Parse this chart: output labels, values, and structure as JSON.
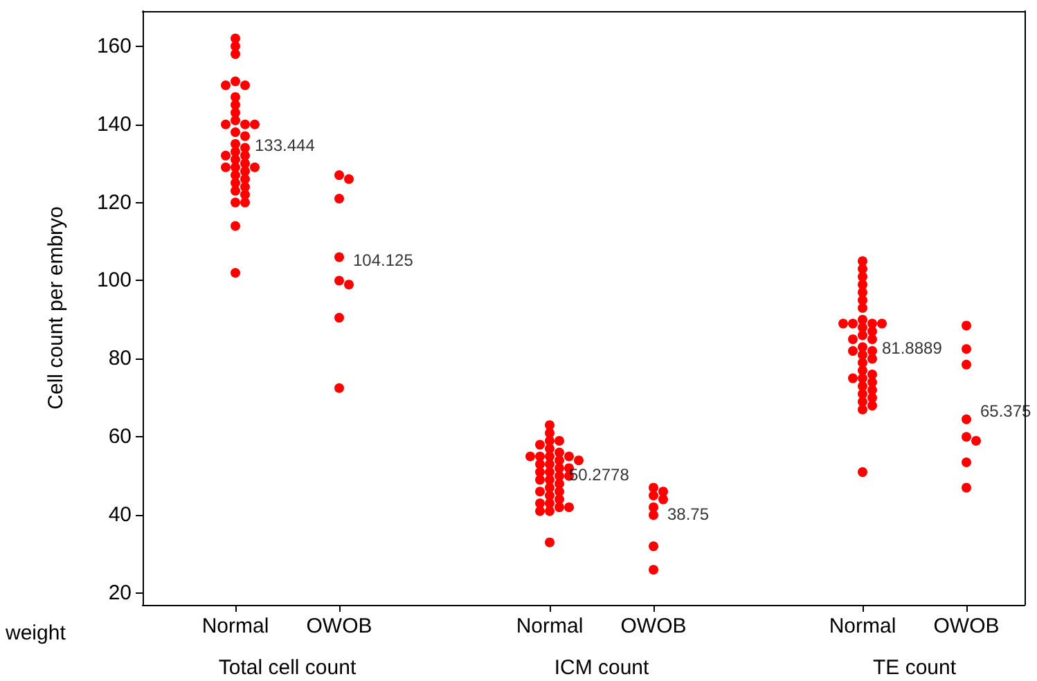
{
  "chart_data": [
    {
      "type": "scatter",
      "ylabel": "Cell count per embryo",
      "xlabel": "Total cell count",
      "categories": [
        "Normal",
        "OWOB"
      ],
      "ylim": [
        17,
        169
      ],
      "yticks": [
        20,
        40,
        60,
        80,
        100,
        120,
        140,
        160
      ],
      "marker": "circle",
      "annotations": [
        "133.444",
        "104.125",
        "weight"
      ],
      "series": [
        {
          "color": "#ff0000",
          "x": [
            "Normal",
            "Normal",
            "Normal",
            "Normal",
            "Normal",
            "Normal",
            "Normal",
            "Normal",
            "Normal",
            "Normal",
            "Normal",
            "Normal",
            "Normal",
            "Normal",
            "Normal",
            "Normal",
            "Normal",
            "Normal",
            "Normal",
            "Normal",
            "Normal",
            "Normal",
            "Normal",
            "Normal",
            "Normal",
            "Normal",
            "Normal",
            "Normal",
            "Normal",
            "Normal",
            "Normal",
            "Normal",
            "Normal",
            "Normal",
            "Normal",
            "Normal"
          ],
          "values": [
            162,
            160,
            158,
            151,
            150,
            150,
            147,
            145,
            143,
            141,
            140,
            140,
            140,
            138,
            137,
            135,
            134,
            133,
            132,
            132,
            131,
            130,
            129,
            129,
            129,
            128,
            127,
            126,
            125,
            124,
            123,
            122,
            120,
            120,
            114,
            102
          ]
        },
        {
          "color": "#ff0000",
          "x": [
            "OWOB",
            "OWOB",
            "OWOB",
            "OWOB",
            "OWOB",
            "OWOB",
            "OWOB",
            "OWOB"
          ],
          "values": [
            127,
            126,
            121,
            106,
            100,
            99,
            90.5,
            72.5
          ]
        }
      ]
    },
    {
      "type": "scatter",
      "xlabel": "ICM count",
      "categories": [
        "Normal",
        "OWOB"
      ],
      "ylim": [
        17,
        169
      ],
      "yticks": [
        20,
        40,
        60,
        80,
        100,
        120,
        140,
        160
      ],
      "tick_labels": "x",
      "marker": "circle",
      "annotations": [
        "50.2778",
        "38.75"
      ],
      "series": [
        {
          "color": "#ff0000",
          "x": [
            "Normal",
            "Normal",
            "Normal",
            "Normal",
            "Normal",
            "Normal",
            "Normal",
            "Normal",
            "Normal",
            "Normal",
            "Normal",
            "Normal",
            "Normal",
            "Normal",
            "Normal",
            "Normal",
            "Normal",
            "Normal",
            "Normal",
            "Normal",
            "Normal",
            "Normal",
            "Normal",
            "Normal",
            "Normal",
            "Normal",
            "Normal",
            "Normal",
            "Normal",
            "Normal",
            "Normal",
            "Normal",
            "Normal",
            "Normal",
            "Normal",
            "Normal"
          ],
          "values": [
            63,
            61,
            59,
            59,
            58,
            57,
            56,
            55,
            55,
            55,
            55,
            54,
            54,
            53,
            53,
            52,
            52,
            51,
            51,
            50,
            50,
            49,
            49,
            48,
            47,
            46,
            46,
            45,
            44,
            43,
            43,
            42,
            42,
            41,
            41,
            33
          ]
        },
        {
          "color": "#ff0000",
          "x": [
            "OWOB",
            "OWOB",
            "OWOB",
            "OWOB",
            "OWOB",
            "OWOB",
            "OWOB",
            "OWOB"
          ],
          "values": [
            47,
            46,
            45,
            44,
            42,
            40,
            32,
            26
          ]
        }
      ]
    },
    {
      "type": "scatter",
      "xlabel": "TE count",
      "categories": [
        "Normal",
        "OWOB"
      ],
      "ylim": [
        17,
        169
      ],
      "yticks": [
        20,
        40,
        60,
        80,
        100,
        120,
        140,
        160
      ],
      "tick_labels": "x",
      "marker": "circle",
      "annotations": [
        "81.8889",
        "65.375"
      ],
      "series": [
        {
          "color": "#ff0000",
          "x": [
            "Normal",
            "Normal",
            "Normal",
            "Normal",
            "Normal",
            "Normal",
            "Normal",
            "Normal",
            "Normal",
            "Normal",
            "Normal",
            "Normal",
            "Normal",
            "Normal",
            "Normal",
            "Normal",
            "Normal",
            "Normal",
            "Normal",
            "Normal",
            "Normal",
            "Normal",
            "Normal",
            "Normal",
            "Normal",
            "Normal",
            "Normal",
            "Normal",
            "Normal",
            "Normal",
            "Normal",
            "Normal",
            "Normal",
            "Normal",
            "Normal",
            "Normal"
          ],
          "values": [
            105,
            103,
            101,
            99,
            97,
            95,
            93,
            90,
            89,
            89,
            89,
            89,
            88,
            87,
            86,
            85,
            85,
            83,
            82,
            82,
            81,
            80,
            79,
            77,
            76,
            75,
            75,
            74,
            73,
            72,
            71,
            70,
            69,
            68,
            67,
            51
          ]
        },
        {
          "color": "#ff0000",
          "x": [
            "OWOB",
            "OWOB",
            "OWOB",
            "OWOB",
            "OWOB",
            "OWOB",
            "OWOB",
            "OWOB"
          ],
          "values": [
            88.5,
            82.5,
            78.5,
            64.5,
            60,
            59,
            53.5,
            47
          ]
        }
      ]
    }
  ]
}
